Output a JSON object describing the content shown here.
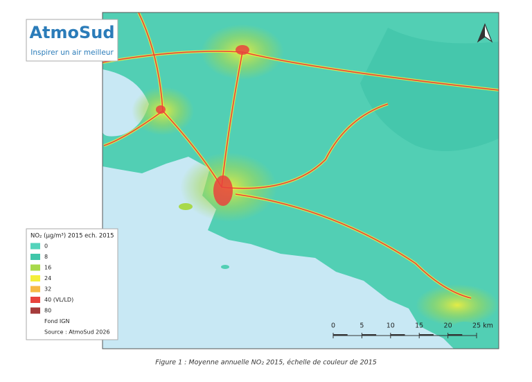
{
  "logo": {
    "name": "AtmoSud",
    "tagline": "Inspirer un air meilleur"
  },
  "legend": {
    "title": "NO₂ (µg/m³) 2015 ech. 2015",
    "items": [
      {
        "label": "0",
        "color": "#55d3bb"
      },
      {
        "label": "8",
        "color": "#3fc6a9"
      },
      {
        "label": "16",
        "color": "#a8d94a"
      },
      {
        "label": "24",
        "color": "#f4ef3a"
      },
      {
        "label": "32",
        "color": "#f6ba44"
      },
      {
        "label": "40 (VL/LD)",
        "color": "#e8433d"
      },
      {
        "label": "80",
        "color": "#a53b3b"
      }
    ],
    "notes": [
      "Fond IGN",
      "Source : AtmoSud 2026"
    ]
  },
  "scale_bar": {
    "labels": [
      "0",
      "5",
      "10",
      "15",
      "20",
      "25 km"
    ]
  },
  "caption": "Figure 1 : Moyenne annuelle NO₂ 2015, échelle de couleur de 2015"
}
